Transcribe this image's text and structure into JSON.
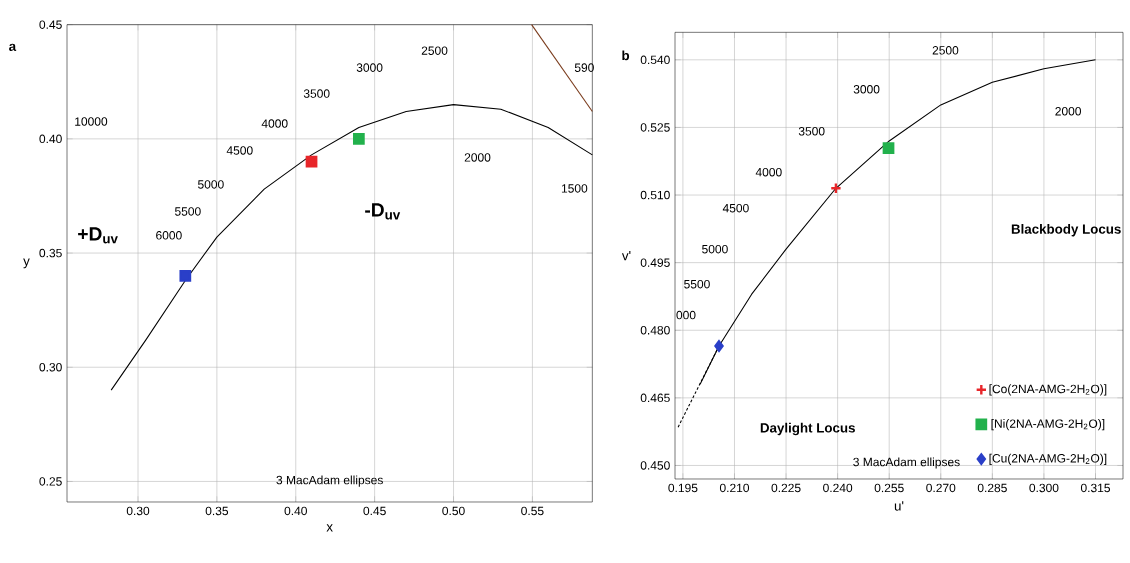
{
  "chart_data": [
    {
      "type": "scatter",
      "title": "a",
      "xlabel": "x",
      "ylabel": "y",
      "xlim": [
        0.255,
        0.588
      ],
      "ylim": [
        0.241,
        0.45
      ],
      "xticks": [
        {
          "value": 0.3,
          "label": "0.30"
        },
        {
          "value": 0.35,
          "label": "0.35"
        },
        {
          "value": 0.4,
          "label": "0.40"
        },
        {
          "value": 0.45,
          "label": "0.45"
        },
        {
          "value": 0.5,
          "label": "0.50"
        },
        {
          "value": 0.55,
          "label": "0.55"
        }
      ],
      "yticks": [
        {
          "value": 0.25,
          "label": "0.25"
        },
        {
          "value": 0.3,
          "label": "0.30"
        },
        {
          "value": 0.35,
          "label": "0.35"
        },
        {
          "value": 0.4,
          "label": "0.40"
        },
        {
          "value": 0.45,
          "label": "0.45"
        }
      ],
      "grid": true,
      "series": [
        {
          "type": "line",
          "color": "#000000",
          "marker": "none",
          "x": [
            0.283,
            0.305,
            0.33,
            0.35,
            0.38,
            0.41,
            0.44,
            0.47,
            0.5,
            0.53,
            0.56,
            0.588
          ],
          "values": [
            0.29,
            0.312,
            0.338,
            0.357,
            0.378,
            0.393,
            0.405,
            0.412,
            0.415,
            0.413,
            0.405,
            0.393
          ]
        },
        {
          "type": "line",
          "color": "#7a3b1c",
          "marker": "none",
          "x": [
            0.5495,
            0.588
          ],
          "values": [
            0.45,
            0.412
          ]
        },
        {
          "type": "scatter",
          "color": "#e8262a",
          "marker": "square",
          "x": [
            0.41
          ],
          "values": [
            0.39
          ]
        },
        {
          "type": "scatter",
          "color": "#22b14c",
          "marker": "square",
          "x": [
            0.44
          ],
          "values": [
            0.4
          ]
        },
        {
          "type": "scatter",
          "color": "#2a3fc8",
          "marker": "square",
          "x": [
            0.33
          ],
          "values": [
            0.34
          ]
        }
      ],
      "annotations": [
        "10000",
        "6000",
        "5500",
        "5000",
        "4500",
        "4000",
        "3500",
        "3000",
        "2500",
        "2000",
        "1500",
        "590",
        "+D$_{uv}$",
        "-D$_{uv}$",
        "3  MacAdam ellipses"
      ]
    },
    {
      "type": "scatter",
      "title": "b",
      "xlabel": "u'",
      "ylabel": "v'",
      "xlim": [
        0.1927,
        0.323
      ],
      "ylim": [
        0.447,
        0.5461
      ],
      "xticks": [
        0.195,
        {
          "value": 0.21,
          "label": "0.210"
        },
        0.225,
        {
          "value": 0.24,
          "label": "0.240"
        },
        0.255,
        {
          "value": 0.27,
          "label": "0.270"
        },
        0.285,
        {
          "value": 0.3,
          "label": "0.300"
        },
        0.315
      ],
      "yticks": [
        {
          "value": 0.45,
          "label": "0.450"
        },
        0.465,
        {
          "value": 0.48,
          "label": "0.480"
        },
        0.495,
        {
          "value": 0.51,
          "label": "0.510"
        },
        0.525,
        {
          "value": 0.54,
          "label": "0.540"
        }
      ],
      "grid": true,
      "legend": "bottom right",
      "series": [
        {
          "type": "line",
          "color": "#000000",
          "marker": "none",
          "x": [
            0.2,
            0.2055,
            0.215,
            0.225,
            0.2395,
            0.255,
            0.27,
            0.285,
            0.3,
            0.315
          ],
          "values": [
            0.468,
            0.4765,
            0.488,
            0.498,
            0.5115,
            0.522,
            0.53,
            0.535,
            0.538,
            0.54
          ]
        },
        {
          "type": "line",
          "color": "#000000",
          "marker": "none",
          "line_style": "dashed",
          "x": [
            0.1936,
            0.2055
          ],
          "values": [
            0.4585,
            0.4765
          ]
        },
        {
          "type": "scatter",
          "name": "[Co(2NA-AMG-2H$_{2}$O)]",
          "color": "#e8262a",
          "marker": "cross",
          "x": [
            0.2395
          ],
          "values": [
            0.5115
          ]
        },
        {
          "type": "scatter",
          "name": "[Ni(2NA-AMG-2H$_{2}$O)]",
          "color": "#22b14c",
          "marker": "square",
          "x": [
            0.2548
          ],
          "values": [
            0.5204
          ]
        },
        {
          "type": "scatter",
          "name": "[Cu(2NA-AMG-2H$_{2}$O)]",
          "color": "#2a3fc8",
          "marker": "diamond",
          "x": [
            0.2055
          ],
          "values": [
            0.4765
          ]
        }
      ],
      "annotations": [
        "2500",
        "3000",
        "3500",
        "4000",
        "4500",
        "5000",
        "5500",
        "000",
        "2000",
        "Blackbody Locus",
        "Daylight Locus",
        "3  MacAdam ellipses"
      ]
    }
  ]
}
